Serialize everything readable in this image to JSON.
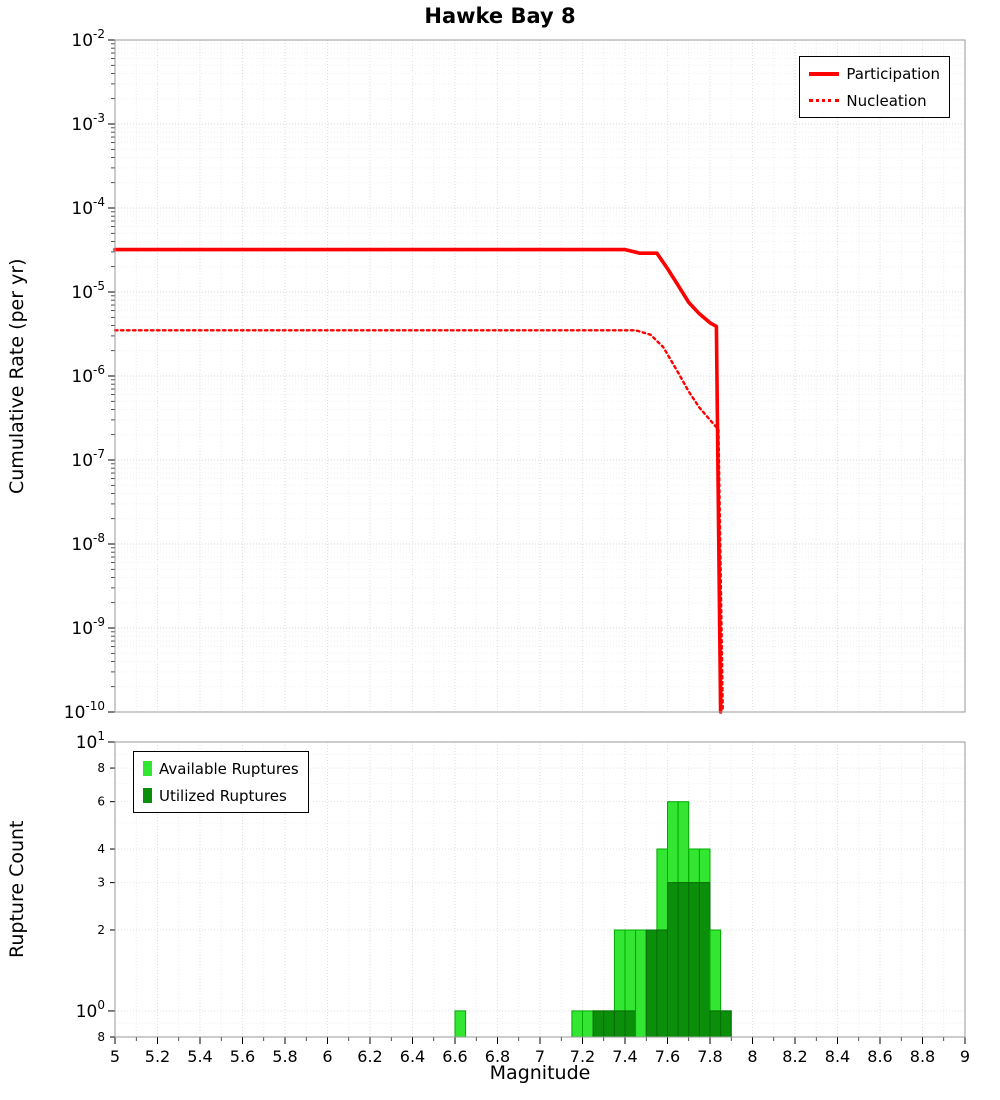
{
  "title": "Hawke Bay 8",
  "chart_data": [
    {
      "type": "line",
      "title": "Hawke Bay 8",
      "ylabel": "Cumulative Rate (per yr)",
      "xlabel": "Magnitude",
      "xlim": [
        5,
        9
      ],
      "ylim_exp": [
        -10,
        -2
      ],
      "y_log_ticks": [
        -2,
        -3,
        -4,
        -5,
        -6,
        -7,
        -8,
        -9,
        -10
      ],
      "grid": true,
      "legend_position": "top-right",
      "legend": [
        {
          "label": "Participation",
          "style": "solid",
          "color": "#ff0000"
        },
        {
          "label": "Nucleation",
          "style": "dotted",
          "color": "#ff0000"
        }
      ],
      "series": [
        {
          "name": "Participation",
          "style": "solid",
          "color": "#ff0000",
          "x": [
            5.0,
            7.4,
            7.47,
            7.55,
            7.6,
            7.65,
            7.7,
            7.75,
            7.8,
            7.83,
            7.85
          ],
          "y": [
            3.2e-05,
            3.2e-05,
            2.9e-05,
            2.9e-05,
            1.9e-05,
            1.2e-05,
            7.5e-06,
            5.5e-06,
            4.3e-06,
            3.9e-06,
            1e-10
          ]
        },
        {
          "name": "Nucleation",
          "style": "dotted",
          "color": "#ff0000",
          "x": [
            5.0,
            7.45,
            7.52,
            7.58,
            7.65,
            7.7,
            7.75,
            7.8,
            7.84,
            7.86
          ],
          "y": [
            3.5e-06,
            3.5e-06,
            3.1e-06,
            2.2e-06,
            1.1e-06,
            6.5e-07,
            4.2e-07,
            3e-07,
            2.3e-07,
            1e-10
          ]
        }
      ]
    },
    {
      "type": "bar",
      "ylabel": "Rupture Count",
      "xlabel": "Magnitude",
      "xlim": [
        5,
        9
      ],
      "ylim": [
        0.8,
        10
      ],
      "bin_width": 0.05,
      "grid": true,
      "legend_position": "top-left",
      "colors": {
        "available": "#32e632",
        "available_border": "#00aa00",
        "utilized": "#0b8f0b",
        "utilized_border": "#076907"
      },
      "legend": [
        {
          "label": "Available Ruptures",
          "color": "#32e632"
        },
        {
          "label": "Utilized Ruptures",
          "color": "#0b8f0b"
        }
      ],
      "y_ticks": [
        {
          "v": 10,
          "exp": "1"
        },
        {
          "v": 8,
          "label": "8"
        },
        {
          "v": 6,
          "label": "6"
        },
        {
          "v": 4,
          "label": "4"
        },
        {
          "v": 3,
          "label": "3"
        },
        {
          "v": 2,
          "label": "2"
        },
        {
          "v": 1,
          "exp": "0"
        },
        {
          "v": 0.8,
          "label": "8"
        }
      ],
      "x_ticks": [
        {
          "v": 5,
          "label": "5"
        },
        {
          "v": 5.2,
          "label": "5.2"
        },
        {
          "v": 5.4,
          "label": "5.4"
        },
        {
          "v": 5.6,
          "label": "5.6"
        },
        {
          "v": 5.8,
          "label": "5.8"
        },
        {
          "v": 6,
          "label": "6"
        },
        {
          "v": 6.2,
          "label": "6.2"
        },
        {
          "v": 6.4,
          "label": "6.4"
        },
        {
          "v": 6.6,
          "label": "6.6"
        },
        {
          "v": 6.8,
          "label": "6.8"
        },
        {
          "v": 7,
          "label": "7"
        },
        {
          "v": 7.2,
          "label": "7.2"
        },
        {
          "v": 7.4,
          "label": "7.4"
        },
        {
          "v": 7.6,
          "label": "7.6"
        },
        {
          "v": 7.8,
          "label": "7.8"
        },
        {
          "v": 8,
          "label": "8"
        },
        {
          "v": 8.2,
          "label": "8.2"
        },
        {
          "v": 8.4,
          "label": "8.4"
        },
        {
          "v": 8.6,
          "label": "8.6"
        },
        {
          "v": 8.8,
          "label": "8.8"
        },
        {
          "v": 9,
          "label": "9"
        }
      ],
      "bars": [
        {
          "mag": 6.6,
          "available": 1,
          "utilized": 0
        },
        {
          "mag": 7.15,
          "available": 1,
          "utilized": 0
        },
        {
          "mag": 7.2,
          "available": 1,
          "utilized": 0
        },
        {
          "mag": 7.25,
          "available": 1,
          "utilized": 1
        },
        {
          "mag": 7.3,
          "available": 1,
          "utilized": 1
        },
        {
          "mag": 7.35,
          "available": 2,
          "utilized": 1
        },
        {
          "mag": 7.4,
          "available": 2,
          "utilized": 1
        },
        {
          "mag": 7.45,
          "available": 2,
          "utilized": 0
        },
        {
          "mag": 7.5,
          "available": 2,
          "utilized": 2
        },
        {
          "mag": 7.55,
          "available": 4,
          "utilized": 2
        },
        {
          "mag": 7.6,
          "available": 6,
          "utilized": 3
        },
        {
          "mag": 7.65,
          "available": 6,
          "utilized": 3
        },
        {
          "mag": 7.7,
          "available": 4,
          "utilized": 3
        },
        {
          "mag": 7.75,
          "available": 4,
          "utilized": 3
        },
        {
          "mag": 7.8,
          "available": 2,
          "utilized": 1
        },
        {
          "mag": 7.85,
          "available": 1,
          "utilized": 1
        }
      ]
    }
  ]
}
